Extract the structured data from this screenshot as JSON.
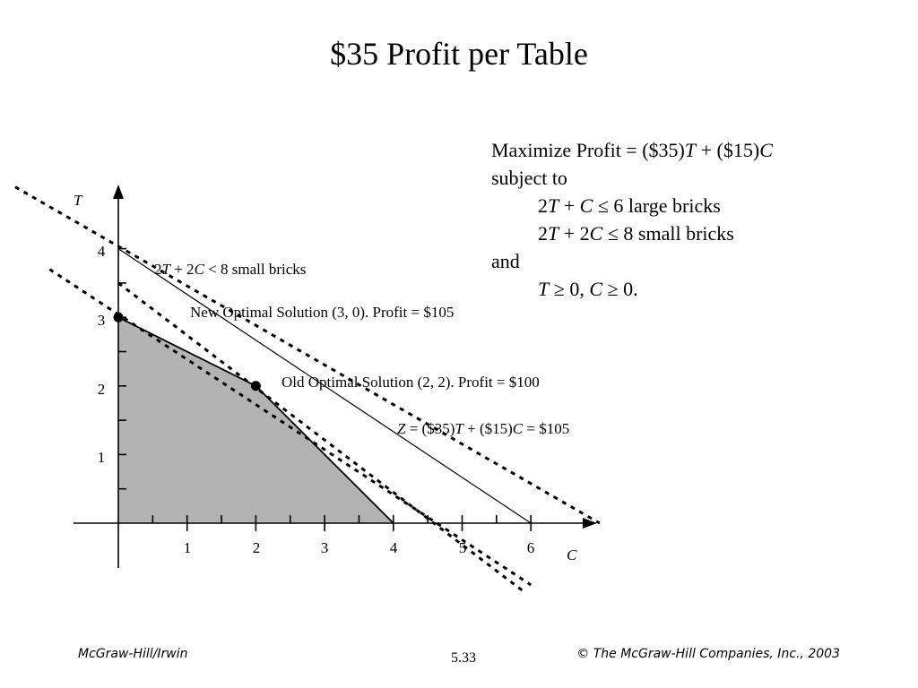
{
  "title": "$35 Profit per Table",
  "problem": {
    "objective": [
      "Maximize Profit = ($35)",
      "T",
      " + ($15)",
      "C"
    ],
    "subject_to": "subject to",
    "constraint1": [
      "2",
      "T",
      " + ",
      "C",
      " ≤ 6 large bricks"
    ],
    "constraint2": [
      "2",
      "T",
      " + 2",
      "C",
      " ≤ 8 small bricks"
    ],
    "and": "and",
    "nonneg": [
      "T",
      " ≥ 0, ",
      "C",
      " ≥ 0."
    ]
  },
  "graph": {
    "x_axis_label": "C",
    "y_axis_label": "T",
    "x_ticks": [
      "1",
      "2",
      "3",
      "4",
      "5",
      "6"
    ],
    "y_ticks": [
      "1",
      "2",
      "3",
      "4"
    ],
    "label_small_bricks": [
      "2",
      "T",
      " + 2",
      "C",
      " < 8 small bricks"
    ],
    "label_new_optimal": "New Optimal Solution (3, 0). Profit = $105",
    "label_old_optimal": "Old Optimal Solution (2, 2). Profit = $100",
    "label_profit_line": [
      "Z",
      " = ($35)",
      "T",
      " + ($15)",
      "C",
      " = $105"
    ]
  },
  "chart_data": {
    "type": "line",
    "xlabel": "C",
    "ylabel": "T",
    "xlim": [
      0,
      7
    ],
    "ylim": [
      0,
      4.5
    ],
    "x_ticks": [
      1,
      2,
      3,
      4,
      5,
      6
    ],
    "y_ticks": [
      1,
      2,
      3,
      4
    ],
    "feasible_region": [
      [
        0,
        0
      ],
      [
        0,
        3
      ],
      [
        2,
        2
      ],
      [
        4,
        0
      ]
    ],
    "lines": [
      {
        "style": "solid",
        "points": [
          [
            0,
            4
          ],
          [
            6,
            0
          ]
        ]
      },
      {
        "style": "solid",
        "points": [
          [
            0,
            3
          ],
          [
            2,
            2
          ],
          [
            4,
            0
          ]
        ]
      },
      {
        "style": "dotted",
        "points": [
          [
            -1.5,
            4.9
          ],
          [
            7,
            0
          ]
        ]
      },
      {
        "style": "dotted",
        "points": [
          [
            -1,
            3.7
          ],
          [
            6,
            -0.9
          ]
        ]
      },
      {
        "style": "dotted",
        "points": [
          [
            0,
            3.5
          ],
          [
            5.9,
            -1.0
          ]
        ]
      }
    ],
    "points": [
      {
        "C": 0,
        "T": 3
      },
      {
        "C": 2,
        "T": 2
      }
    ]
  },
  "footer": {
    "left": "McGraw-Hill/Irwin",
    "center": "5.33",
    "right": "© The McGraw-Hill Companies, Inc., 2003"
  }
}
